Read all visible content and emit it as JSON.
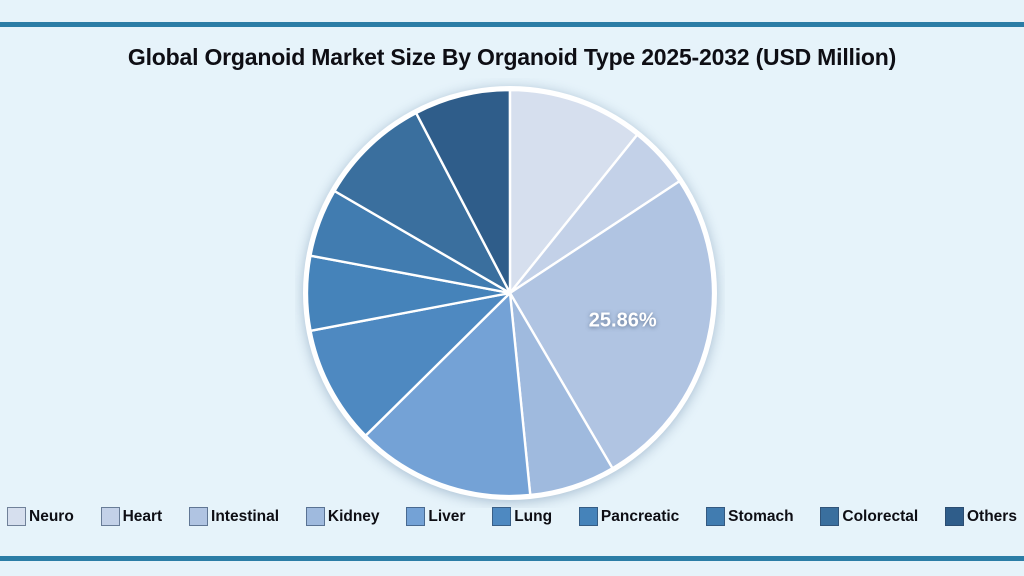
{
  "title": "Global Organoid Market Size By Organoid Type 2025-2032 (USD Million)",
  "theme": {
    "background": "#e6f3fa",
    "rule_color": "#2b7da6",
    "title_color": "#0e0e14",
    "pie_rim_color": "#ffffff",
    "slice_border_color": "#ffffff",
    "slice_label_color": "#ffffff"
  },
  "chart_data": {
    "type": "pie",
    "title": "Global Organoid Market Size By Organoid Type 2025-2032 (USD Million)",
    "direction": "clockwise",
    "start_angle_deg": 0,
    "legend_position": "bottom",
    "shown_data_label": "25.86%",
    "series": [
      {
        "label": "Neuro",
        "value_pct": 10.78,
        "color": "#d6dfee",
        "shown_label": ""
      },
      {
        "label": "Heart",
        "value_pct": 4.94,
        "color": "#c3d1e8",
        "shown_label": ""
      },
      {
        "label": "Intestinal",
        "value_pct": 25.86,
        "color": "#b0c4e2",
        "shown_label": "25.86%"
      },
      {
        "label": "Kidney",
        "value_pct": 6.83,
        "color": "#9fbade",
        "shown_label": ""
      },
      {
        "label": "Liver",
        "value_pct": 14.19,
        "color": "#74a2d6",
        "shown_label": ""
      },
      {
        "label": "Lung",
        "value_pct": 9.42,
        "color": "#4e89c1",
        "shown_label": ""
      },
      {
        "label": "Pancreatic",
        "value_pct": 5.92,
        "color": "#4583ba",
        "shown_label": ""
      },
      {
        "label": "Stomach",
        "value_pct": 5.44,
        "color": "#417cb0",
        "shown_label": ""
      },
      {
        "label": "Colorectal",
        "value_pct": 8.97,
        "color": "#3a6f9e",
        "shown_label": ""
      },
      {
        "label": "Others",
        "value_pct": 7.64,
        "color": "#2f5d8a",
        "shown_label": ""
      }
    ]
  }
}
